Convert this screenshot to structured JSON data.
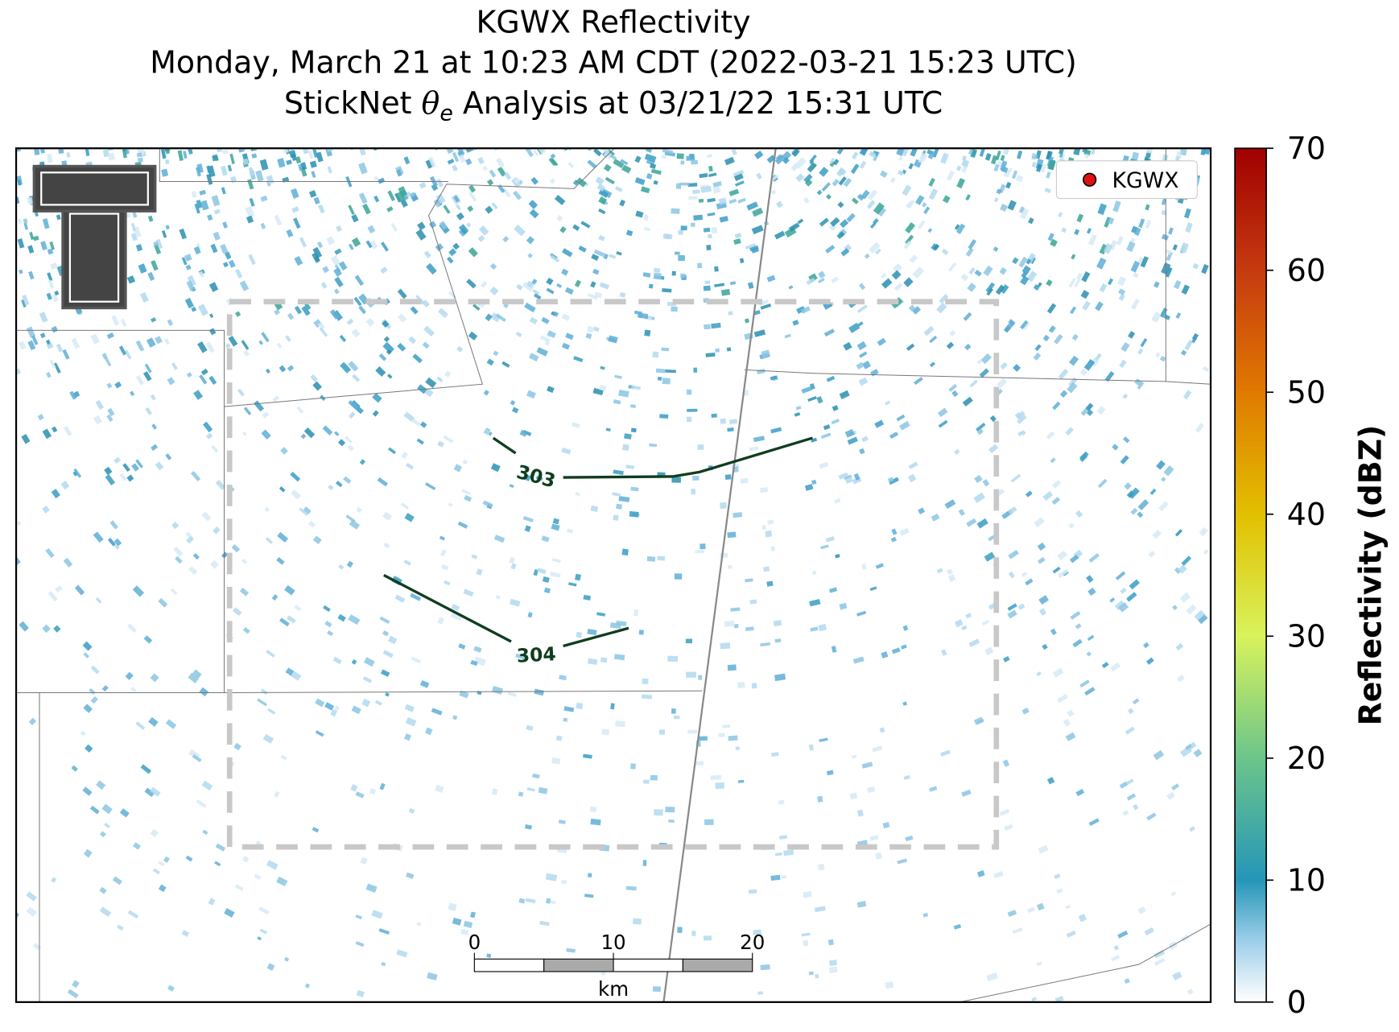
{
  "title": {
    "line1": "KGWX Reflectivity",
    "line2": "Monday, March 21 at 10:23 AM CDT (2022-03-21 15:23 UTC)",
    "line3": {
      "prefix": "StickNet",
      "symbol": "θ",
      "subscript": "e",
      "suffix": "Analysis at 03/21/22 15:31 UTC"
    }
  },
  "legend": "KGWX",
  "colorbar": {
    "label": "Reflectivity (dBZ)",
    "lim": [
      0,
      70
    ],
    "ticks": [
      0,
      10,
      20,
      30,
      40,
      50,
      60,
      70
    ]
  },
  "contours": [
    {
      "label": "303"
    },
    {
      "label": "304"
    }
  ],
  "scale_bar": {
    "ticks": [
      0,
      10,
      20
    ],
    "unit": "km"
  }
}
